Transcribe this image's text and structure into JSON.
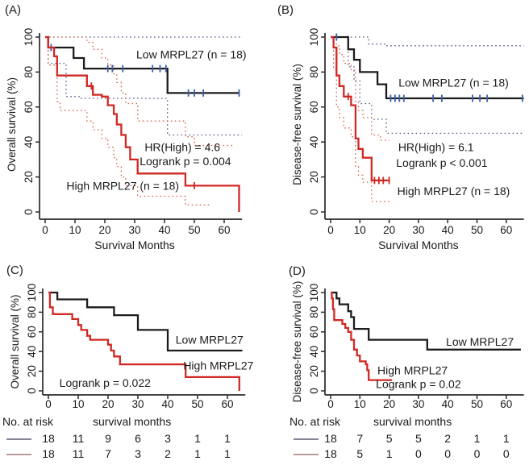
{
  "colors": {
    "low_curve": "#1c1c1c",
    "high_curve": "#d02823",
    "censor_low": "#3a61a8",
    "ci_low": "#4f5a86",
    "ci_high": "#d4604a",
    "risk_swatch_low": "#73738a",
    "risk_swatch_high": "#b18c8c",
    "axis": "#2a2a2a",
    "text": "#1a1a1a"
  },
  "chart_data": [
    {
      "type": "line",
      "panel": "(A)",
      "xlabel": "Survival Months",
      "ylabel": "Overall survival (%)",
      "xlim": [
        0,
        66
      ],
      "ylim": [
        0,
        100
      ],
      "xticks": [
        0,
        10,
        20,
        30,
        40,
        50,
        60
      ],
      "yticks": [
        0,
        20,
        40,
        60,
        80,
        100
      ],
      "series": [
        {
          "name": "Low MRPL27 (n = 18)",
          "kind": "km",
          "color_key": "low_curve",
          "censor_color_key": "censor_low",
          "steps": [
            [
              0,
              100
            ],
            [
              1,
              94
            ],
            [
              9.5,
              88
            ],
            [
              13,
              82
            ],
            [
              41,
              68
            ],
            [
              65,
              68
            ]
          ],
          "censors": [
            [
              2,
              94
            ],
            [
              21,
              82
            ],
            [
              22.5,
              82
            ],
            [
              26,
              82
            ],
            [
              36,
              82
            ],
            [
              38.5,
              82
            ],
            [
              40.5,
              82
            ],
            [
              48,
              68
            ],
            [
              50,
              68
            ],
            [
              53,
              68
            ],
            [
              65,
              68
            ]
          ]
        },
        {
          "name": "High MRPL27 (n = 18)",
          "kind": "km",
          "color_key": "high_curve",
          "censor_color_key": "high_curve",
          "steps": [
            [
              0,
              100
            ],
            [
              1,
              94
            ],
            [
              3,
              89
            ],
            [
              4,
              78
            ],
            [
              14,
              72
            ],
            [
              16,
              67
            ],
            [
              19,
              66
            ],
            [
              21,
              61
            ],
            [
              23,
              56
            ],
            [
              24,
              50
            ],
            [
              25.5,
              44
            ],
            [
              27,
              37
            ],
            [
              28.5,
              30
            ],
            [
              31,
              22
            ],
            [
              47,
              15
            ],
            [
              65,
              0
            ]
          ],
          "censors": [
            [
              15.5,
              72
            ],
            [
              50,
              15
            ]
          ]
        },
        {
          "name": "Low MRPL27 95% CI upper",
          "kind": "ci",
          "color_key": "ci_low",
          "steps": [
            [
              0,
              100
            ],
            [
              66,
              100
            ]
          ]
        },
        {
          "name": "Low MRPL27 95% CI lower",
          "kind": "ci",
          "color_key": "ci_low",
          "steps": [
            [
              0,
              100
            ],
            [
              1,
              85
            ],
            [
              7,
              66
            ],
            [
              12,
              65
            ],
            [
              41,
              44
            ],
            [
              66,
              44
            ]
          ]
        },
        {
          "name": "High MRPL27 95% CI upper",
          "kind": "ci",
          "color_key": "ci_high",
          "steps": [
            [
              0,
              100
            ],
            [
              14,
              97
            ],
            [
              16,
              93
            ],
            [
              19,
              88
            ],
            [
              21,
              84
            ],
            [
              23,
              79
            ],
            [
              24,
              74
            ],
            [
              25.5,
              68
            ],
            [
              27,
              62
            ],
            [
              31,
              52
            ],
            [
              47,
              43
            ],
            [
              50,
              38
            ],
            [
              63,
              38
            ]
          ]
        },
        {
          "name": "High MRPL27 95% CI lower",
          "kind": "ci",
          "color_key": "ci_high",
          "steps": [
            [
              0,
              100
            ],
            [
              1,
              84
            ],
            [
              4,
              63
            ],
            [
              5,
              58
            ],
            [
              14,
              52
            ],
            [
              16,
              47
            ],
            [
              19,
              42
            ],
            [
              21,
              37
            ],
            [
              23,
              31
            ],
            [
              24,
              26
            ],
            [
              25.5,
              20
            ],
            [
              27,
              15
            ],
            [
              31,
              9
            ],
            [
              47,
              4
            ],
            [
              55,
              4
            ]
          ]
        }
      ],
      "annotations": [
        {
          "text": "Low MRPL27 (n = 18)",
          "x": 49,
          "y": 90
        },
        {
          "text": "HR(High) = 4.6",
          "x": 46,
          "y": 37
        },
        {
          "text": "Logrank p = 0.004",
          "x": 47,
          "y": 29
        },
        {
          "text": "High MRPL27 (n = 18)",
          "x": 26,
          "y": 15
        }
      ],
      "risk_table": null
    },
    {
      "type": "line",
      "panel": "(B)",
      "xlabel": "Survival Months",
      "ylabel": "Disease-free survival (%)",
      "xlim": [
        0,
        66
      ],
      "ylim": [
        0,
        100
      ],
      "xticks": [
        0,
        10,
        20,
        30,
        40,
        50,
        60
      ],
      "yticks": [
        0,
        20,
        40,
        60,
        80,
        100
      ],
      "series": [
        {
          "name": "Low MRPL27 (n = 18)",
          "kind": "km",
          "color_key": "low_curve",
          "censor_color_key": "censor_low",
          "steps": [
            [
              0,
              100
            ],
            [
              6,
              93
            ],
            [
              8,
              87
            ],
            [
              10,
              80
            ],
            [
              16,
              73
            ],
            [
              19,
              65
            ],
            [
              66,
              65
            ]
          ],
          "censors": [
            [
              2,
              100
            ],
            [
              20.5,
              65
            ],
            [
              22,
              65
            ],
            [
              23.5,
              65
            ],
            [
              25,
              65
            ],
            [
              35,
              65
            ],
            [
              38,
              65
            ],
            [
              48.5,
              65
            ],
            [
              51,
              65
            ],
            [
              53.5,
              65
            ],
            [
              65.5,
              65
            ]
          ]
        },
        {
          "name": "High MRPL27 (n = 18)",
          "kind": "km",
          "color_key": "high_curve",
          "censor_color_key": "high_curve",
          "steps": [
            [
              0,
              100
            ],
            [
              1,
              94
            ],
            [
              2,
              78
            ],
            [
              3,
              72
            ],
            [
              4.5,
              66
            ],
            [
              7,
              61
            ],
            [
              8.5,
              42
            ],
            [
              9.5,
              36
            ],
            [
              11,
              31
            ],
            [
              14,
              18
            ],
            [
              20,
              18
            ]
          ],
          "censors": [
            [
              6,
              66
            ],
            [
              15,
              18
            ],
            [
              16.5,
              18
            ],
            [
              18,
              18
            ],
            [
              20,
              18
            ]
          ]
        },
        {
          "name": "Low MRPL27 95% CI upper",
          "kind": "ci",
          "color_key": "ci_low",
          "steps": [
            [
              0,
              100
            ],
            [
              13,
              96
            ],
            [
              19,
              95
            ],
            [
              66,
              95
            ]
          ]
        },
        {
          "name": "Low MRPL27 95% CI lower",
          "kind": "ci",
          "color_key": "ci_low",
          "steps": [
            [
              0,
              100
            ],
            [
              6,
              83
            ],
            [
              8,
              75
            ],
            [
              10,
              62
            ],
            [
              14,
              53
            ],
            [
              19,
              45
            ],
            [
              66,
              45
            ]
          ]
        },
        {
          "name": "High MRPL27 95% CI upper",
          "kind": "ci",
          "color_key": "ci_high",
          "steps": [
            [
              0,
              100
            ],
            [
              2,
              95
            ],
            [
              3,
              90
            ],
            [
              4.5,
              85
            ],
            [
              7,
              81
            ],
            [
              8.5,
              63
            ],
            [
              9.5,
              58
            ],
            [
              11,
              54
            ],
            [
              14,
              44
            ],
            [
              17,
              41
            ],
            [
              20,
              41
            ]
          ]
        },
        {
          "name": "High MRPL27 95% CI lower",
          "kind": "ci",
          "color_key": "ci_high",
          "steps": [
            [
              0,
              100
            ],
            [
              1,
              82
            ],
            [
              2,
              60
            ],
            [
              3,
              54
            ],
            [
              4.5,
              48
            ],
            [
              7,
              43
            ],
            [
              8.5,
              26
            ],
            [
              9.5,
              21
            ],
            [
              11,
              17
            ],
            [
              14,
              6
            ],
            [
              20,
              6
            ]
          ]
        }
      ],
      "annotations": [
        {
          "text": "Low MRPL27 (n = 18)",
          "x": 42,
          "y": 74
        },
        {
          "text": "HR(High) = 6.1",
          "x": 36,
          "y": 37
        },
        {
          "text": "Logrank p < 0.001",
          "x": 38,
          "y": 28
        },
        {
          "text": "High MRPL27 (n = 18)",
          "x": 42,
          "y": 12
        }
      ],
      "risk_table": null
    },
    {
      "type": "line",
      "panel": "(C)",
      "xlabel": "",
      "ylabel": "Overall survival (%)",
      "xlim": [
        0,
        66
      ],
      "ylim": [
        0,
        100
      ],
      "xticks": [
        0,
        10,
        20,
        30,
        40,
        50,
        60
      ],
      "yticks": [
        0,
        20,
        40,
        60,
        80,
        100
      ],
      "series": [
        {
          "name": "Low MRPL27",
          "kind": "km",
          "color_key": "low_curve",
          "steps": [
            [
              0,
              100
            ],
            [
              3,
              93
            ],
            [
              13,
              85
            ],
            [
              22,
              77
            ],
            [
              30,
              62
            ],
            [
              40,
              41
            ],
            [
              65,
              41
            ]
          ],
          "censors": []
        },
        {
          "name": "High MRPL27",
          "kind": "km",
          "color_key": "high_curve",
          "steps": [
            [
              0,
              100
            ],
            [
              0.5,
              85
            ],
            [
              1.5,
              78
            ],
            [
              8,
              73
            ],
            [
              10,
              67
            ],
            [
              11,
              62
            ],
            [
              13,
              56
            ],
            [
              14,
              52
            ],
            [
              20,
              47
            ],
            [
              21,
              41
            ],
            [
              22,
              35
            ],
            [
              24,
              27
            ],
            [
              46,
              14
            ],
            [
              64,
              0
            ]
          ],
          "censors": []
        }
      ],
      "annotations": [
        {
          "text": "Low MRPL27",
          "x": 54,
          "y": 52
        },
        {
          "text": "High MRPL27",
          "x": 57,
          "y": 26
        },
        {
          "text": "Logrank p = 0.022",
          "x": 19,
          "y": 8
        }
      ],
      "risk_table": {
        "title": "No. at risk",
        "time_label": "survival months",
        "rows": [
          {
            "group": "Low MRPL27",
            "swatch_key": "risk_swatch_low",
            "values": [
              "18",
              "11",
              "9",
              "6",
              "3",
              "1",
              "1"
            ]
          },
          {
            "group": "High MRPL27",
            "swatch_key": "risk_swatch_high",
            "values": [
              "18",
              "11",
              "7",
              "3",
              "2",
              "1",
              "1"
            ]
          }
        ]
      }
    },
    {
      "type": "line",
      "panel": "(D)",
      "xlabel": "",
      "ylabel": "Disease-free survival (%)",
      "xlim": [
        0,
        66
      ],
      "ylim": [
        0,
        100
      ],
      "xticks": [
        0,
        10,
        20,
        30,
        40,
        50,
        60
      ],
      "yticks": [
        0,
        20,
        40,
        60,
        80,
        100
      ],
      "series": [
        {
          "name": "Low MRPL27",
          "kind": "km",
          "color_key": "low_curve",
          "steps": [
            [
              0,
              100
            ],
            [
              2,
              94
            ],
            [
              3,
              88
            ],
            [
              6,
              81
            ],
            [
              7,
              75
            ],
            [
              8,
              63
            ],
            [
              13,
              52
            ],
            [
              33,
              42
            ],
            [
              65,
              42
            ]
          ],
          "censors": []
        },
        {
          "name": "High MRPL27",
          "kind": "km",
          "color_key": "high_curve",
          "steps": [
            [
              0,
              100
            ],
            [
              0.4,
              94
            ],
            [
              0.8,
              83
            ],
            [
              1.2,
              72
            ],
            [
              4,
              68
            ],
            [
              5,
              64
            ],
            [
              6,
              60
            ],
            [
              7,
              52
            ],
            [
              8,
              42
            ],
            [
              9,
              36
            ],
            [
              10,
              30
            ],
            [
              12,
              27
            ],
            [
              12.5,
              21
            ],
            [
              13,
              11
            ],
            [
              21,
              11
            ]
          ],
          "censors": []
        }
      ],
      "annotations": [
        {
          "text": "Low MRPL27",
          "x": 51,
          "y": 50
        },
        {
          "text": "High MRPL27",
          "x": 28,
          "y": 21
        },
        {
          "text": "Logrank p = 0.02",
          "x": 30,
          "y": 7
        }
      ],
      "risk_table": {
        "title": "No. at risk",
        "time_label": "survival months",
        "rows": [
          {
            "group": "Low MRPL27",
            "swatch_key": "risk_swatch_low",
            "values": [
              "18",
              "7",
              "5",
              "5",
              "2",
              "1",
              "1"
            ]
          },
          {
            "group": "High MRPL27",
            "swatch_key": "risk_swatch_high",
            "values": [
              "18",
              "5",
              "1",
              "0",
              "0",
              "0",
              "0"
            ]
          }
        ]
      }
    }
  ]
}
